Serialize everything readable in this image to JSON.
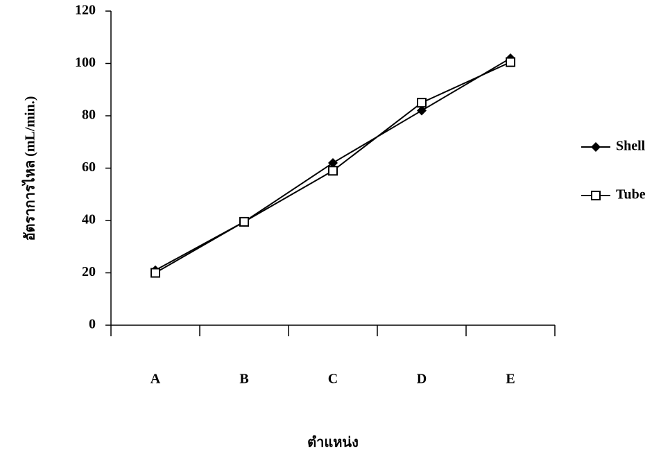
{
  "chart_data": {
    "type": "line",
    "x_label": "ตำแหน่ง",
    "y_label": "อัตราการไหล (mL/min.)",
    "categories": [
      "A",
      "B",
      "C",
      "D",
      "E"
    ],
    "series": [
      {
        "name": "Shell",
        "color": "#000000",
        "marker": "diamond",
        "values": [
          21,
          39.5,
          62,
          82,
          102
        ]
      },
      {
        "name": "Tube",
        "color": "#000000",
        "marker": "square",
        "values": [
          20,
          39.5,
          59,
          85,
          100.5
        ]
      }
    ],
    "ylim": [
      0,
      120
    ],
    "yticks": [
      0,
      20,
      40,
      60,
      80,
      100,
      120
    ],
    "legend": "right"
  }
}
